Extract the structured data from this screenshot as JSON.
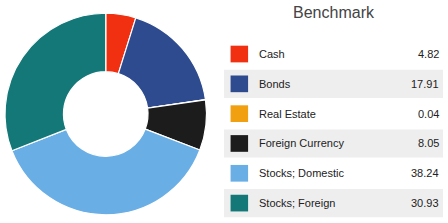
{
  "chart_data": {
    "type": "pie",
    "title": "Benchmark",
    "categories": [
      "Cash",
      "Bonds",
      "Real Estate",
      "Foreign Currency",
      "Stocks; Domestic",
      "Stocks; Foreign"
    ],
    "values": [
      4.82,
      17.91,
      0.04,
      8.05,
      38.24,
      30.93
    ],
    "colors": [
      "#f03010",
      "#2d4b8e",
      "#f0a010",
      "#1c1c1c",
      "#6aaee6",
      "#147878"
    ],
    "data_labels": true,
    "legend": "right"
  }
}
